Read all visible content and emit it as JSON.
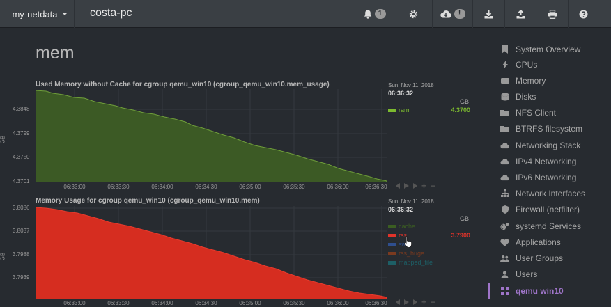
{
  "topbar": {
    "brand": "my-netdata",
    "host": "costa-pc",
    "alarms_count": "1",
    "update_badge": "!"
  },
  "page_title": "mem",
  "charts": [
    {
      "title": "Used Memory without Cache for cgroup qemu_win10 (cgroup_qemu_win10.mem_usage)",
      "ylabel": "GB",
      "yticks": [
        "4.3848",
        "4.3799",
        "4.3750",
        "4.3701"
      ],
      "xticks": [
        "06:33:00",
        "06:33:30",
        "06:34:00",
        "06:34:30",
        "06:35:00",
        "06:35:30",
        "06:36:00",
        "06:36:30"
      ],
      "legend": {
        "date": "Sun, Nov 11, 2018",
        "time": "06:36:32",
        "units": "GB",
        "dimensions": [
          {
            "name": "ram",
            "value": "4.3700",
            "color": "#7cba2f"
          }
        ]
      },
      "fill": "#3c5a25",
      "stroke": "#6f9e3a"
    },
    {
      "title": "Memory Usage for cgroup qemu_win10 (cgroup_qemu_win10.mem)",
      "ylabel": "GB",
      "yticks": [
        "3.8086",
        "3.8037",
        "3.7988",
        "3.7939"
      ],
      "xticks": [
        "06:33:00",
        "06:33:30",
        "06:34:00",
        "06:34:30",
        "06:35:00",
        "06:35:30",
        "06:36:00",
        "06:36:30"
      ],
      "legend": {
        "date": "Sun, Nov 11, 2018",
        "time": "06:36:32",
        "units": "GB",
        "dimensions": [
          {
            "name": "cache",
            "value": "",
            "color": "#3b5e22"
          },
          {
            "name": "rss",
            "value": "3.7900",
            "color": "#e0332a"
          },
          {
            "name": "sw",
            "value": "",
            "color": "#2f4f8f"
          },
          {
            "name": "rss_huge",
            "value": "",
            "color": "#7a3a1f"
          },
          {
            "name": "mapped_file",
            "value": "",
            "color": "#1d5f66"
          }
        ]
      },
      "fill": "#d62d20",
      "stroke": "#e63b2e"
    }
  ],
  "sidebar": {
    "items": [
      {
        "label": "System Overview",
        "icon": "bookmark-icon"
      },
      {
        "label": "CPUs",
        "icon": "bolt-icon"
      },
      {
        "label": "Memory",
        "icon": "memory-icon"
      },
      {
        "label": "Disks",
        "icon": "disk-icon"
      },
      {
        "label": "NFS Client",
        "icon": "folder-icon"
      },
      {
        "label": "BTRFS filesystem",
        "icon": "folder-icon"
      },
      {
        "label": "Networking Stack",
        "icon": "cloud-icon"
      },
      {
        "label": "IPv4 Networking",
        "icon": "cloud-icon"
      },
      {
        "label": "IPv6 Networking",
        "icon": "cloud-icon"
      },
      {
        "label": "Network Interfaces",
        "icon": "sitemap-icon"
      },
      {
        "label": "Firewall (netfilter)",
        "icon": "shield-icon"
      },
      {
        "label": "systemd Services",
        "icon": "gears-icon"
      },
      {
        "label": "Applications",
        "icon": "heartbeat-icon"
      },
      {
        "label": "User Groups",
        "icon": "users-icon"
      },
      {
        "label": "Users",
        "icon": "user-icon"
      },
      {
        "label": "qemu win10",
        "icon": "grid-icon"
      }
    ]
  }
}
